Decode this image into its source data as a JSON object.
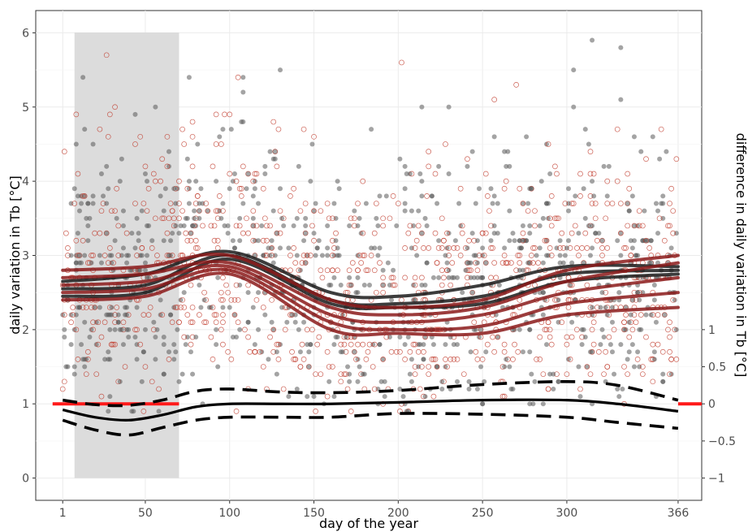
{
  "chart_data": {
    "type": "scatter",
    "xlabel": "day of the year",
    "ylabel": "daily variation in Tb [°C]",
    "ylabel_right": "difference in daily variation in Tb [°C]",
    "xlim": [
      -15,
      380
    ],
    "ylim": [
      -0.3,
      6.3
    ],
    "x_ticks": [
      1,
      50,
      100,
      150,
      200,
      250,
      300,
      366
    ],
    "y_ticks": [
      0,
      1,
      2,
      3,
      4,
      5,
      6
    ],
    "y2_ticks": [
      {
        "label": "−1",
        "y": 0
      },
      {
        "label": "−0.5",
        "y": 0.5
      },
      {
        "label": "0",
        "y": 1
      },
      {
        "label": "0.5",
        "y": 1.5
      },
      {
        "label": "1",
        "y": 2
      }
    ],
    "grid": true,
    "shaded_region": {
      "x": [
        8,
        70
      ],
      "color": "#dcdcdc"
    },
    "point_series": [
      {
        "marker": "filled",
        "color": "#595959",
        "y_range": [
          1.3,
          6.0
        ]
      },
      {
        "marker": "open",
        "color": "#c0392b",
        "y_range": [
          1.0,
          6.0
        ]
      }
    ],
    "smooth_series": [
      {
        "color": "#1a1a1a",
        "x": [
          1,
          50,
          100,
          160,
          200,
          250,
          300,
          366
        ],
        "y": [
          2.55,
          2.6,
          3.0,
          2.4,
          2.35,
          2.45,
          2.75,
          2.8
        ]
      },
      {
        "color": "#1a1a1a",
        "x": [
          1,
          50,
          100,
          160,
          200,
          250,
          300,
          366
        ],
        "y": [
          2.65,
          2.75,
          3.05,
          2.5,
          2.45,
          2.6,
          2.85,
          2.85
        ]
      },
      {
        "color": "#1a1a1a",
        "x": [
          1,
          50,
          100,
          160,
          200,
          250,
          300,
          366
        ],
        "y": [
          2.45,
          2.5,
          2.95,
          2.35,
          2.3,
          2.35,
          2.65,
          2.75
        ]
      },
      {
        "color": "#8b1a1a",
        "x": [
          1,
          50,
          100,
          160,
          200,
          250,
          300,
          366
        ],
        "y": [
          2.8,
          2.85,
          3.0,
          2.4,
          2.3,
          2.4,
          2.8,
          3.0
        ]
      },
      {
        "color": "#8b1a1a",
        "x": [
          1,
          50,
          100,
          160,
          200,
          250,
          300,
          366
        ],
        "y": [
          2.7,
          2.75,
          2.9,
          2.3,
          2.2,
          2.3,
          2.65,
          2.9
        ]
      },
      {
        "color": "#8b1a1a",
        "x": [
          1,
          50,
          100,
          160,
          200,
          250,
          300,
          366
        ],
        "y": [
          2.6,
          2.65,
          2.85,
          2.2,
          2.1,
          2.2,
          2.5,
          2.7
        ]
      },
      {
        "color": "#8b1a1a",
        "x": [
          1,
          50,
          100,
          160,
          200,
          250,
          300,
          366
        ],
        "y": [
          2.5,
          2.55,
          2.8,
          2.1,
          2.0,
          2.05,
          2.35,
          2.5
        ]
      },
      {
        "color": "#8b1a1a",
        "x": [
          1,
          50,
          100,
          160,
          200,
          250,
          300,
          366
        ],
        "y": [
          2.4,
          2.45,
          2.75,
          2.0,
          1.95,
          1.95,
          2.2,
          2.3
        ]
      }
    ],
    "difference_curve": {
      "x": [
        1,
        20,
        40,
        60,
        80,
        100,
        130,
        160,
        200,
        250,
        300,
        330,
        366
      ],
      "mean": [
        0.92,
        0.82,
        0.78,
        0.85,
        0.96,
        1.0,
        1.0,
        1.0,
        1.02,
        1.05,
        1.05,
        1.0,
        0.9
      ],
      "upper": [
        1.05,
        0.99,
        0.98,
        1.05,
        1.17,
        1.2,
        1.16,
        1.15,
        1.18,
        1.26,
        1.3,
        1.25,
        1.05
      ],
      "lower": [
        0.78,
        0.65,
        0.58,
        0.68,
        0.78,
        0.82,
        0.82,
        0.82,
        0.87,
        0.86,
        0.82,
        0.75,
        0.67
      ]
    },
    "zero_segments": [
      {
        "x": [
          -5,
          70
        ]
      },
      {
        "x": [
          366,
          380
        ]
      }
    ]
  }
}
